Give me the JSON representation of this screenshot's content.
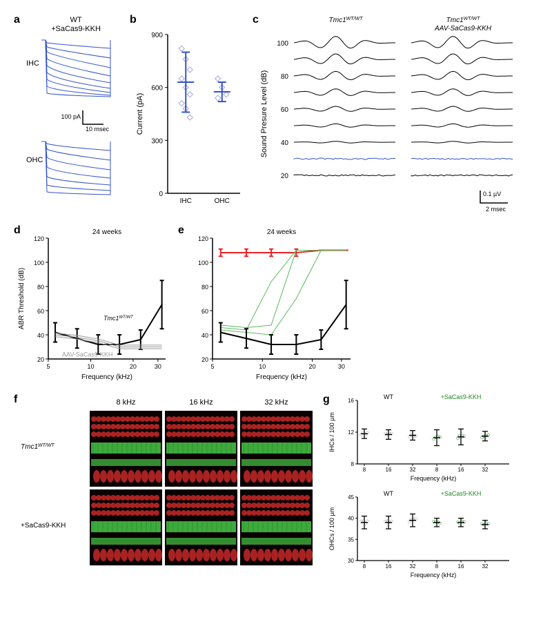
{
  "panel_a": {
    "label": "a",
    "title": "WT\n+SaCas9-KKH",
    "traces": {
      "type": "electrophysiology-traces",
      "color": "#3353c6",
      "ihc_label": "IHC",
      "ohc_label": "OHC",
      "scale_current": "100 pA",
      "scale_time": "10 msec"
    }
  },
  "panel_b": {
    "label": "b",
    "type": "scatter",
    "ylabel": "Current (pA)",
    "categories": [
      "IHC",
      "OHC"
    ],
    "ylim": [
      0,
      900
    ],
    "ytick_step": 300,
    "points": {
      "IHC": [
        820,
        760,
        700,
        650,
        600,
        560,
        510,
        480,
        430
      ],
      "OHC": [
        650,
        600,
        560,
        540
      ]
    },
    "means": {
      "IHC": 630,
      "OHC": 575
    },
    "errors": {
      "IHC": 170,
      "OHC": 55
    },
    "marker_color": "#b3b3e6",
    "error_color": "#3353c6",
    "background_color": "#ffffff"
  },
  "panel_c": {
    "label": "c",
    "type": "waveforms",
    "titles": [
      "Tmc1^WT/WT",
      "Tmc1^WT/WT\nAAV-SaCas9-KKH"
    ],
    "ylabel": "Sound Presure Level (dB)",
    "yticks": [
      20,
      40,
      60,
      80,
      100
    ],
    "threshold_level": 30,
    "threshold_color": "#3353c6",
    "trace_color": "#000000",
    "scale_v": "0.1 µV",
    "scale_t": "2 msec"
  },
  "panel_d": {
    "label": "d",
    "type": "line",
    "title": "24 weeks",
    "xlabel": "Frequency (kHz)",
    "ylabel": "ABR Threshold (dB)",
    "xticks": [
      5,
      10,
      20,
      30
    ],
    "x_positions": {
      "5": 5.6,
      "8": 8,
      "10": 11.3,
      "20": 22.6,
      "30": 32
    },
    "ylim": [
      20,
      120
    ],
    "ytick_step": 20,
    "series": [
      {
        "name": "Tmc1^WT/WT",
        "color": "#000000",
        "x": [
          5.6,
          8,
          11.3,
          16,
          22.6,
          32
        ],
        "y": [
          42,
          37,
          32,
          32,
          36,
          65
        ],
        "error": [
          8,
          8,
          8,
          8,
          8,
          20
        ],
        "width": 2
      },
      {
        "name": "AAV-SaCas9-KKH",
        "color": "#999999",
        "x": [
          5.6,
          8,
          11.3,
          16,
          22.6,
          32
        ],
        "y": [
          40,
          38,
          35,
          30,
          30,
          30
        ],
        "width": 1,
        "multi": 3
      }
    ],
    "legend_labels": {
      "black": "Tmc1^WT/WT",
      "gray": "AAV-SaCas9-KKH"
    }
  },
  "panel_e": {
    "label": "e",
    "type": "line",
    "title": "24 weeks",
    "xlabel": "Frequency (kHz)",
    "ylabel": "",
    "xticks": [
      5,
      10,
      20,
      30
    ],
    "ylim": [
      20,
      120
    ],
    "ytick_step": 20,
    "series": [
      {
        "name": "red",
        "color": "#ed2024",
        "x": [
          5.6,
          8,
          11.3,
          16,
          22.6,
          32
        ],
        "y": [
          108,
          108,
          108,
          108,
          110,
          110
        ],
        "error": [
          3,
          3,
          3,
          3,
          0,
          0
        ],
        "width": 2
      },
      {
        "name": "green1",
        "color": "#5cb85c",
        "x": [
          5.6,
          8,
          11.3,
          16,
          22.6,
          32
        ],
        "y": [
          48,
          46,
          48,
          110,
          110,
          110
        ],
        "width": 1
      },
      {
        "name": "green2",
        "color": "#5cb85c",
        "x": [
          5.6,
          8,
          11.3,
          16,
          22.6,
          32
        ],
        "y": [
          46,
          44,
          84,
          110,
          110,
          110
        ],
        "width": 1
      },
      {
        "name": "green3",
        "color": "#5cb85c",
        "x": [
          5.6,
          8,
          11.3,
          16,
          22.6,
          32
        ],
        "y": [
          44,
          42,
          40,
          70,
          110,
          110
        ],
        "width": 1
      },
      {
        "name": "black",
        "color": "#000000",
        "x": [
          5.6,
          8,
          11.3,
          16,
          22.6,
          32
        ],
        "y": [
          42,
          37,
          32,
          32,
          36,
          65
        ],
        "error": [
          8,
          8,
          8,
          8,
          8,
          20
        ],
        "width": 2
      }
    ]
  },
  "panel_f": {
    "label": "f",
    "type": "microscopy-grid",
    "col_labels": [
      "8 kHz",
      "16 kHz",
      "32 kHz"
    ],
    "row_labels": [
      "Tmc1^WT/WT",
      "+SaCas9-KKH"
    ],
    "colors": {
      "red": "#c62828",
      "green": "#46c846",
      "bg": "#0a0000"
    }
  },
  "panel_g": {
    "label": "g",
    "top": {
      "type": "scatter",
      "ylabel": "IHCs / 100 µm",
      "xlabel": "Frequency (kHz)",
      "xticks": [
        8,
        16,
        32,
        8,
        16,
        32
      ],
      "ylim": [
        8,
        16
      ],
      "ytick_step": 4,
      "groups": [
        {
          "label": "WT",
          "color": "#999999",
          "x": [
            8,
            16,
            32
          ],
          "y": [
            11.8,
            11.7,
            11.6
          ],
          "err": [
            0.6,
            0.6,
            0.6
          ]
        },
        {
          "label": "+SaCas9-KKH",
          "color": "#1a8a1a",
          "x": [
            8,
            16,
            32
          ],
          "y": [
            11.3,
            11.4,
            11.5
          ],
          "err": [
            1.0,
            1.0,
            0.6
          ]
        }
      ]
    },
    "bottom": {
      "type": "scatter",
      "ylabel": "OHCs / 100 µm",
      "xlabel": "Frequency (kHz)",
      "xticks": [
        8,
        16,
        32,
        8,
        16,
        32
      ],
      "ylim": [
        30,
        45
      ],
      "ytick_step": 5,
      "groups": [
        {
          "label": "WT",
          "color": "#999999",
          "x": [
            8,
            16,
            32
          ],
          "y": [
            39,
            39,
            39.5
          ],
          "err": [
            1.5,
            1.5,
            1.5
          ]
        },
        {
          "label": "+SaCas9-KKH",
          "color": "#1a8a1a",
          "x": [
            8,
            16,
            32
          ],
          "y": [
            39,
            39,
            38.5
          ],
          "err": [
            1.0,
            1.0,
            1.0
          ]
        }
      ]
    }
  }
}
